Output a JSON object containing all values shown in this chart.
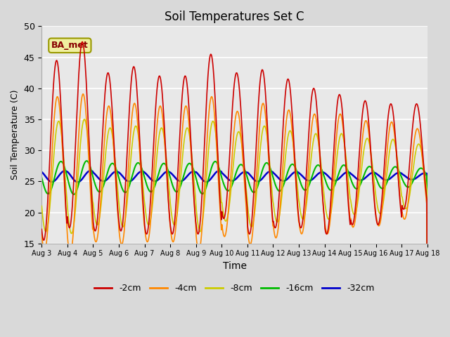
{
  "title": "Soil Temperatures Set C",
  "xlabel": "Time",
  "ylabel": "Soil Temperature (C)",
  "ylim": [
    15,
    50
  ],
  "xlim": [
    0,
    15
  ],
  "annotation": "BA_met",
  "x_tick_labels": [
    "Aug 3",
    "Aug 4",
    "Aug 5",
    "Aug 6",
    "Aug 7",
    "Aug 8",
    "Aug 9",
    "Aug 10",
    "Aug 11",
    "Aug 12",
    "Aug 13",
    "Aug 14",
    "Aug 15",
    "Aug 16",
    "Aug 17",
    "Aug 18"
  ],
  "series_labels": [
    "-2cm",
    "-4cm",
    "-8cm",
    "-16cm",
    "-32cm"
  ],
  "series_colors": [
    "#cc0000",
    "#ff8800",
    "#cccc00",
    "#00bb00",
    "#0000cc"
  ],
  "background_color": "#d9d9d9",
  "plot_bg_color": "#e8e8e8",
  "n_days": 15,
  "points_per_day": 48,
  "phase_shifts": [
    0.33,
    0.36,
    0.41,
    0.5,
    0.65
  ],
  "amplitudes": [
    13.5,
    10.5,
    7.5,
    2.2,
    0.75
  ],
  "means": [
    26.5,
    26.2,
    25.8,
    25.6,
    25.8
  ],
  "day_peaks_2cm": [
    44.5,
    47.5,
    42.5,
    43.5,
    42.0,
    42.0,
    45.5,
    42.5,
    43.0,
    41.5,
    40.0,
    39.0,
    38.0,
    37.5,
    37.5
  ],
  "day_troughs_2cm": [
    15.5,
    17.5,
    17.0,
    17.0,
    16.5,
    16.5,
    16.5,
    19.0,
    16.5,
    17.5,
    17.5,
    16.5,
    18.0,
    18.0,
    20.5
  ]
}
